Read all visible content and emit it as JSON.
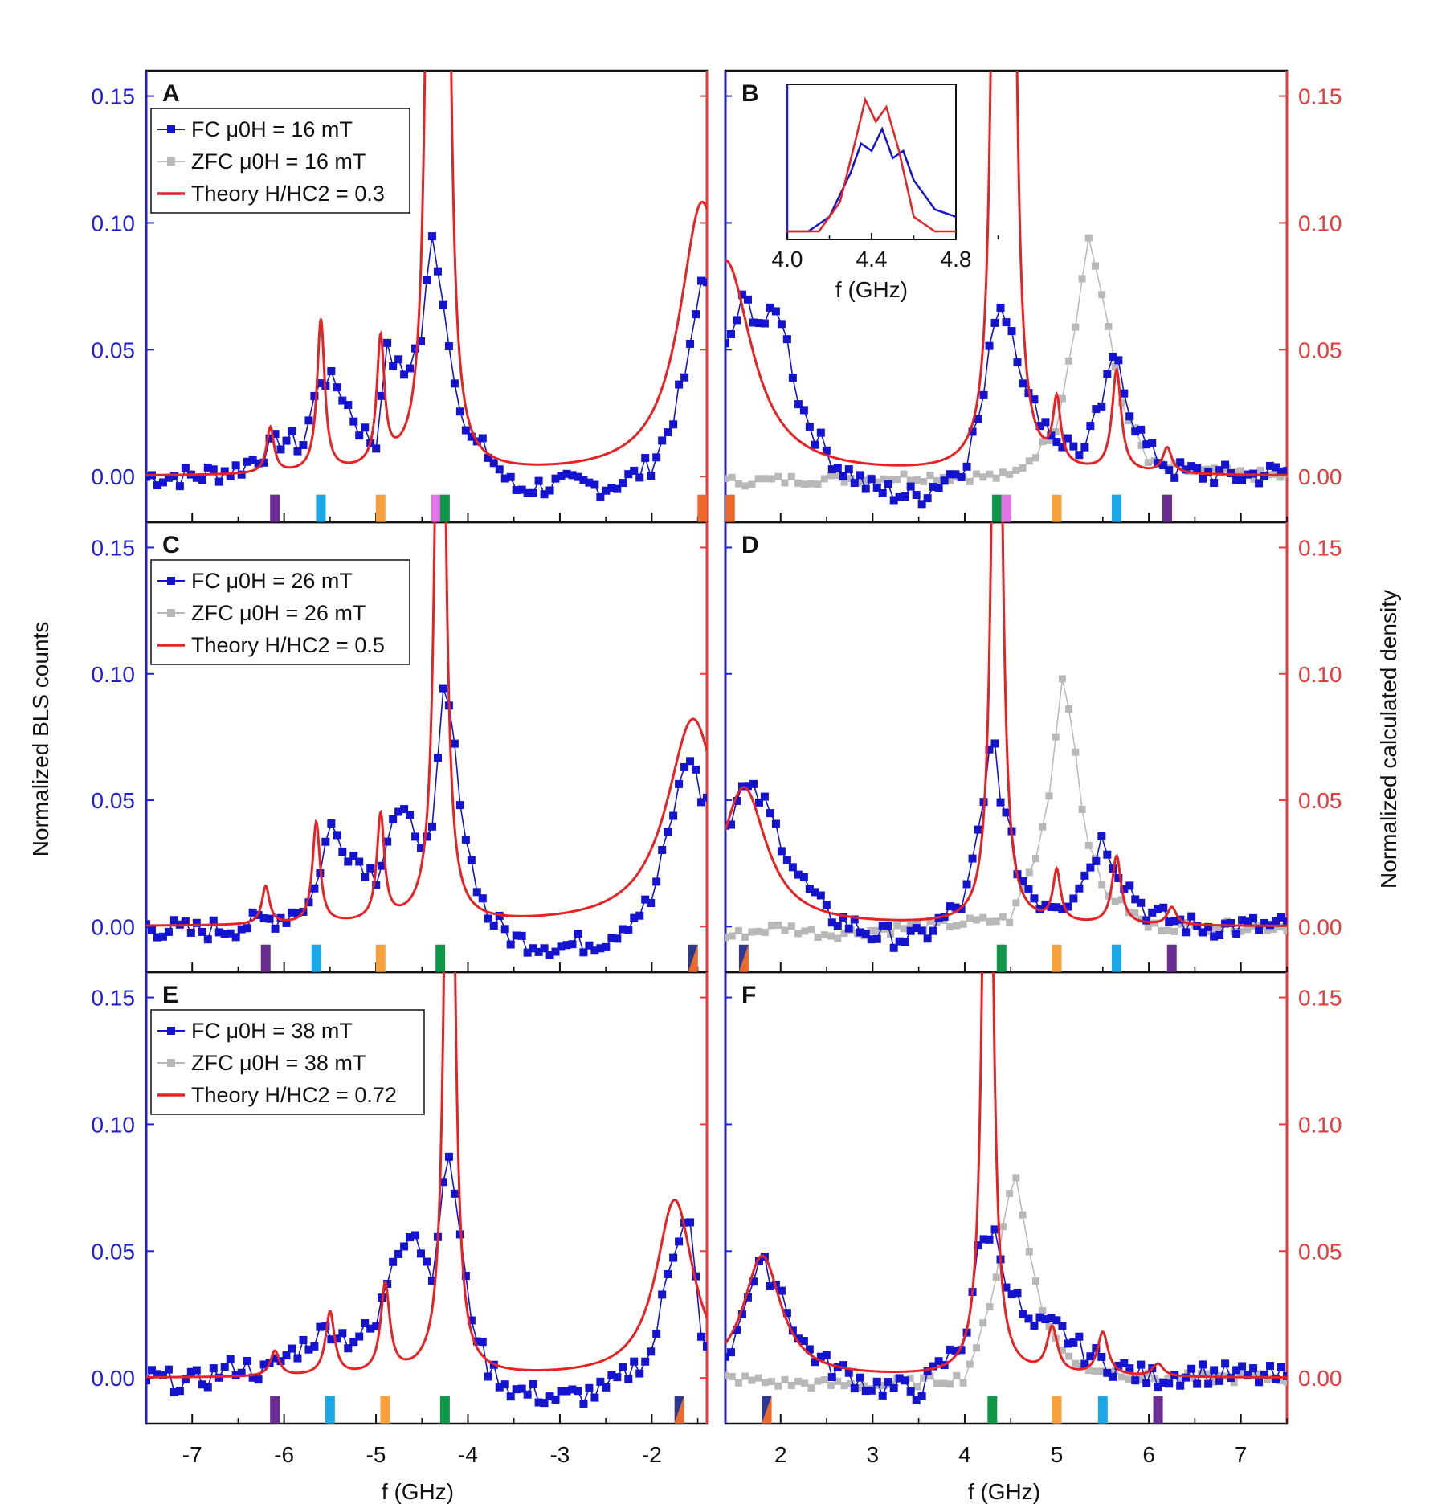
{
  "figure": {
    "y_left_title": "Normalized BLS counts",
    "y_right_title": "Normalized calculated density",
    "x_title_left": "f (GHz)",
    "x_title_right": "f (GHz)",
    "colors": {
      "fc": "#1414d0",
      "zfc": "#b8b8b8",
      "theory": "#e82222",
      "left_axis": "#1f1fd6",
      "right_axis": "#e83a3a"
    }
  },
  "chart_data": [
    {
      "panel": "A",
      "type": "line",
      "xlim": [
        -7.5,
        -1.4
      ],
      "ylim": [
        -0.018,
        0.16
      ],
      "legend": [
        "FC μ0H = 16 mT",
        "ZFC μ0H = 16 mT",
        "Theory H/HC2 = 0.3"
      ],
      "theory_peaks": [
        {
          "f": -6.15,
          "h": 0.018,
          "w": 0.05
        },
        {
          "f": -5.6,
          "h": 0.06,
          "w": 0.05
        },
        {
          "f": -4.95,
          "h": 0.05,
          "w": 0.05
        },
        {
          "f": -4.4,
          "h": 0.4,
          "w": 0.05
        },
        {
          "f": -4.25,
          "h": 0.4,
          "w": 0.05
        },
        {
          "f": -1.45,
          "h": 0.108,
          "w": 0.3
        }
      ],
      "fc_points": [
        [
          -7.5,
          0.0
        ],
        [
          -7.0,
          0.0
        ],
        [
          -6.5,
          0.003
        ],
        [
          -6.2,
          0.01
        ],
        [
          -6.0,
          0.015
        ],
        [
          -5.8,
          0.012
        ],
        [
          -5.6,
          0.04
        ],
        [
          -5.4,
          0.035
        ],
        [
          -5.2,
          0.02
        ],
        [
          -5.0,
          0.012
        ],
        [
          -4.9,
          0.05
        ],
        [
          -4.7,
          0.04
        ],
        [
          -4.5,
          0.055
        ],
        [
          -4.4,
          0.095
        ],
        [
          -4.3,
          0.08
        ],
        [
          -4.2,
          0.05
        ],
        [
          -4.0,
          0.015
        ],
        [
          -3.8,
          0.01
        ],
        [
          -3.5,
          -0.005
        ],
        [
          -3.0,
          -0.003
        ],
        [
          -2.5,
          -0.004
        ],
        [
          -2.2,
          0.0
        ],
        [
          -2.0,
          0.005
        ],
        [
          -1.8,
          0.02
        ],
        [
          -1.6,
          0.045
        ],
        [
          -1.45,
          0.08
        ]
      ],
      "markers": [
        {
          "f": -6.1,
          "colors": [
            "#6a2d91"
          ]
        },
        {
          "f": -5.6,
          "colors": [
            "#1aa8e8"
          ]
        },
        {
          "f": -4.95,
          "colors": [
            "#f7a03c"
          ]
        },
        {
          "f": -4.35,
          "colors": [
            "#e472e8"
          ]
        },
        {
          "f": -4.25,
          "colors": [
            "#10984a"
          ]
        },
        {
          "f": -1.45,
          "colors": [
            "#ed6a2c"
          ]
        }
      ]
    },
    {
      "panel": "B",
      "type": "line",
      "xlim": [
        1.4,
        7.5
      ],
      "ylim": [
        -0.018,
        0.16
      ],
      "theory_peaks": [
        {
          "f": 1.4,
          "h": 0.085,
          "w": 0.35
        },
        {
          "f": 4.35,
          "h": 0.4,
          "w": 0.05
        },
        {
          "f": 4.5,
          "h": 0.4,
          "w": 0.05
        },
        {
          "f": 5.0,
          "h": 0.025,
          "w": 0.05
        },
        {
          "f": 5.65,
          "h": 0.04,
          "w": 0.06
        },
        {
          "f": 6.2,
          "h": 0.01,
          "w": 0.06
        }
      ],
      "fc_points": [
        [
          1.4,
          0.05
        ],
        [
          1.6,
          0.07
        ],
        [
          1.8,
          0.06
        ],
        [
          2.0,
          0.065
        ],
        [
          2.2,
          0.03
        ],
        [
          2.4,
          0.015
        ],
        [
          2.6,
          0.005
        ],
        [
          3.0,
          -0.005
        ],
        [
          3.5,
          -0.008
        ],
        [
          4.0,
          0.005
        ],
        [
          4.2,
          0.03
        ],
        [
          4.35,
          0.07
        ],
        [
          4.5,
          0.06
        ],
        [
          4.7,
          0.03
        ],
        [
          5.0,
          0.015
        ],
        [
          5.3,
          0.01
        ],
        [
          5.5,
          0.03
        ],
        [
          5.65,
          0.05
        ],
        [
          5.8,
          0.025
        ],
        [
          6.0,
          0.01
        ],
        [
          6.3,
          0.002
        ],
        [
          7.0,
          0.0
        ],
        [
          7.5,
          0.002
        ]
      ],
      "zfc_points": [
        [
          1.4,
          -0.002
        ],
        [
          2.5,
          -0.001
        ],
        [
          3.5,
          0.0
        ],
        [
          4.5,
          0.0
        ],
        [
          4.8,
          0.01
        ],
        [
          5.0,
          0.02
        ],
        [
          5.2,
          0.06
        ],
        [
          5.35,
          0.095
        ],
        [
          5.5,
          0.07
        ],
        [
          5.7,
          0.03
        ],
        [
          6.0,
          0.005
        ],
        [
          6.5,
          0.002
        ],
        [
          7.5,
          0.0
        ]
      ],
      "markers": [
        {
          "f": 1.45,
          "colors": [
            "#ed6a2c"
          ]
        },
        {
          "f": 4.35,
          "colors": [
            "#10984a"
          ]
        },
        {
          "f": 4.45,
          "colors": [
            "#e472e8"
          ]
        },
        {
          "f": 5.0,
          "colors": [
            "#f7a03c"
          ]
        },
        {
          "f": 5.65,
          "colors": [
            "#1aa8e8"
          ]
        },
        {
          "f": 6.2,
          "colors": [
            "#6a2d91"
          ]
        }
      ],
      "inset": {
        "xlim": [
          4.0,
          4.8
        ],
        "ticks": [
          "4.0",
          "4.4",
          "4.8"
        ],
        "xlabel": "f (GHz)",
        "fc": [
          [
            4.0,
            0.0
          ],
          [
            4.1,
            0.0
          ],
          [
            4.2,
            0.02
          ],
          [
            4.3,
            0.08
          ],
          [
            4.35,
            0.12
          ],
          [
            4.4,
            0.11
          ],
          [
            4.45,
            0.14
          ],
          [
            4.5,
            0.1
          ],
          [
            4.55,
            0.11
          ],
          [
            4.6,
            0.07
          ],
          [
            4.7,
            0.03
          ],
          [
            4.8,
            0.02
          ]
        ],
        "theory": [
          [
            4.0,
            0.0
          ],
          [
            4.15,
            0.0
          ],
          [
            4.25,
            0.04
          ],
          [
            4.32,
            0.12
          ],
          [
            4.37,
            0.18
          ],
          [
            4.42,
            0.15
          ],
          [
            4.47,
            0.17
          ],
          [
            4.53,
            0.11
          ],
          [
            4.6,
            0.02
          ],
          [
            4.7,
            0.0
          ],
          [
            4.8,
            0.0
          ]
        ]
      }
    },
    {
      "panel": "C",
      "type": "line",
      "xlim": [
        -7.5,
        -1.4
      ],
      "ylim": [
        -0.018,
        0.16
      ],
      "legend": [
        "FC μ0H = 26 mT",
        "ZFC μ0H = 26 mT",
        "Theory H/HC2 = 0.5"
      ],
      "theory_peaks": [
        {
          "f": -6.2,
          "h": 0.015,
          "w": 0.05
        },
        {
          "f": -5.65,
          "h": 0.04,
          "w": 0.05
        },
        {
          "f": -4.95,
          "h": 0.042,
          "w": 0.05
        },
        {
          "f": -4.3,
          "h": 0.4,
          "w": 0.05
        },
        {
          "f": -1.55,
          "h": 0.082,
          "w": 0.35
        }
      ],
      "fc_points": [
        [
          -7.5,
          0.0
        ],
        [
          -7.0,
          -0.002
        ],
        [
          -6.5,
          0.0
        ],
        [
          -6.0,
          0.004
        ],
        [
          -5.7,
          0.01
        ],
        [
          -5.5,
          0.04
        ],
        [
          -5.3,
          0.03
        ],
        [
          -5.0,
          0.02
        ],
        [
          -4.8,
          0.045
        ],
        [
          -4.6,
          0.04
        ],
        [
          -4.4,
          0.03
        ],
        [
          -4.25,
          0.1
        ],
        [
          -4.15,
          0.07
        ],
        [
          -4.0,
          0.03
        ],
        [
          -3.8,
          0.005
        ],
        [
          -3.5,
          -0.005
        ],
        [
          -3.0,
          -0.008
        ],
        [
          -2.5,
          -0.005
        ],
        [
          -2.0,
          0.01
        ],
        [
          -1.8,
          0.04
        ],
        [
          -1.6,
          0.07
        ],
        [
          -1.45,
          0.05
        ]
      ],
      "markers": [
        {
          "f": -6.2,
          "colors": [
            "#6a2d91"
          ]
        },
        {
          "f": -5.65,
          "colors": [
            "#1aa8e8"
          ]
        },
        {
          "f": -4.95,
          "colors": [
            "#f7a03c"
          ]
        },
        {
          "f": -4.3,
          "colors": [
            "#10984a"
          ]
        },
        {
          "f": -1.55,
          "colors": [
            "#2b3990",
            "#ed6a2c"
          ]
        }
      ]
    },
    {
      "panel": "D",
      "type": "line",
      "xlim": [
        1.4,
        7.5
      ],
      "ylim": [
        -0.018,
        0.16
      ],
      "theory_peaks": [
        {
          "f": 1.6,
          "h": 0.055,
          "w": 0.3
        },
        {
          "f": 4.35,
          "h": 0.4,
          "w": 0.05
        },
        {
          "f": 5.0,
          "h": 0.02,
          "w": 0.05
        },
        {
          "f": 5.65,
          "h": 0.027,
          "w": 0.06
        },
        {
          "f": 6.25,
          "h": 0.007,
          "w": 0.06
        }
      ],
      "fc_points": [
        [
          1.4,
          0.04
        ],
        [
          1.6,
          0.055
        ],
        [
          1.8,
          0.05
        ],
        [
          2.0,
          0.035
        ],
        [
          2.2,
          0.02
        ],
        [
          2.5,
          0.005
        ],
        [
          3.0,
          -0.003
        ],
        [
          3.5,
          -0.005
        ],
        [
          4.0,
          0.01
        ],
        [
          4.2,
          0.045
        ],
        [
          4.3,
          0.08
        ],
        [
          4.4,
          0.05
        ],
        [
          4.6,
          0.02
        ],
        [
          4.8,
          0.01
        ],
        [
          5.1,
          0.01
        ],
        [
          5.3,
          0.02
        ],
        [
          5.5,
          0.035
        ],
        [
          5.7,
          0.02
        ],
        [
          6.0,
          0.005
        ],
        [
          6.5,
          0.0
        ],
        [
          7.5,
          0.0
        ]
      ],
      "zfc_points": [
        [
          1.4,
          -0.004
        ],
        [
          2.0,
          0.0
        ],
        [
          2.5,
          -0.003
        ],
        [
          3.5,
          0.0
        ],
        [
          4.5,
          0.003
        ],
        [
          4.8,
          0.03
        ],
        [
          4.95,
          0.06
        ],
        [
          5.05,
          0.1
        ],
        [
          5.15,
          0.085
        ],
        [
          5.3,
          0.04
        ],
        [
          5.5,
          0.015
        ],
        [
          6.0,
          0.0
        ],
        [
          7.5,
          0.0
        ]
      ],
      "markers": [
        {
          "f": 1.6,
          "colors": [
            "#2b3990",
            "#ed6a2c"
          ]
        },
        {
          "f": 4.4,
          "colors": [
            "#10984a"
          ]
        },
        {
          "f": 5.0,
          "colors": [
            "#f7a03c"
          ]
        },
        {
          "f": 5.65,
          "colors": [
            "#1aa8e8"
          ]
        },
        {
          "f": 6.25,
          "colors": [
            "#6a2d91"
          ]
        }
      ]
    },
    {
      "panel": "E",
      "type": "line",
      "xlim": [
        -7.5,
        -1.4
      ],
      "ylim": [
        -0.018,
        0.16
      ],
      "legend": [
        "FC μ0H = 38 mT",
        "ZFC μ0H = 38 mT",
        "Theory H/HC2 = 0.72"
      ],
      "theory_peaks": [
        {
          "f": -6.1,
          "h": 0.01,
          "w": 0.06
        },
        {
          "f": -5.5,
          "h": 0.025,
          "w": 0.06
        },
        {
          "f": -4.9,
          "h": 0.035,
          "w": 0.06
        },
        {
          "f": -4.2,
          "h": 0.4,
          "w": 0.05
        },
        {
          "f": -1.75,
          "h": 0.07,
          "w": 0.25
        }
      ],
      "fc_points": [
        [
          -7.5,
          0.0
        ],
        [
          -7.0,
          -0.002
        ],
        [
          -6.5,
          0.005
        ],
        [
          -6.2,
          0.002
        ],
        [
          -6.0,
          0.008
        ],
        [
          -5.7,
          0.015
        ],
        [
          -5.5,
          0.02
        ],
        [
          -5.3,
          0.015
        ],
        [
          -5.0,
          0.02
        ],
        [
          -4.8,
          0.05
        ],
        [
          -4.6,
          0.06
        ],
        [
          -4.4,
          0.04
        ],
        [
          -4.2,
          0.09
        ],
        [
          -4.1,
          0.06
        ],
        [
          -4.0,
          0.03
        ],
        [
          -3.8,
          0.005
        ],
        [
          -3.5,
          -0.005
        ],
        [
          -3.0,
          -0.008
        ],
        [
          -2.5,
          -0.005
        ],
        [
          -2.0,
          0.01
        ],
        [
          -1.8,
          0.045
        ],
        [
          -1.6,
          0.07
        ],
        [
          -1.45,
          0.01
        ]
      ],
      "markers": [
        {
          "f": -6.1,
          "colors": [
            "#6a2d91"
          ]
        },
        {
          "f": -5.5,
          "colors": [
            "#1aa8e8"
          ]
        },
        {
          "f": -4.9,
          "colors": [
            "#f7a03c"
          ]
        },
        {
          "f": -4.25,
          "colors": [
            "#10984a"
          ]
        },
        {
          "f": -1.7,
          "colors": [
            "#2b3990",
            "#ed6a2c"
          ]
        }
      ]
    },
    {
      "panel": "F",
      "type": "line",
      "xlim": [
        1.4,
        7.5
      ],
      "ylim": [
        -0.018,
        0.16
      ],
      "theory_peaks": [
        {
          "f": 1.8,
          "h": 0.048,
          "w": 0.25
        },
        {
          "f": 4.25,
          "h": 0.4,
          "w": 0.05
        },
        {
          "f": 4.95,
          "h": 0.018,
          "w": 0.07
        },
        {
          "f": 5.5,
          "h": 0.017,
          "w": 0.07
        },
        {
          "f": 6.1,
          "h": 0.005,
          "w": 0.07
        }
      ],
      "fc_points": [
        [
          1.4,
          0.005
        ],
        [
          1.6,
          0.03
        ],
        [
          1.8,
          0.045
        ],
        [
          2.0,
          0.035
        ],
        [
          2.2,
          0.015
        ],
        [
          2.5,
          0.005
        ],
        [
          3.0,
          -0.003
        ],
        [
          3.5,
          -0.005
        ],
        [
          4.0,
          0.015
        ],
        [
          4.15,
          0.05
        ],
        [
          4.3,
          0.06
        ],
        [
          4.45,
          0.04
        ],
        [
          4.7,
          0.02
        ],
        [
          5.0,
          0.02
        ],
        [
          5.3,
          0.01
        ],
        [
          5.6,
          0.005
        ],
        [
          6.0,
          0.0
        ],
        [
          6.5,
          0.002
        ],
        [
          7.5,
          0.0
        ]
      ],
      "zfc_points": [
        [
          1.4,
          0.0
        ],
        [
          2.0,
          -0.002
        ],
        [
          3.0,
          -0.003
        ],
        [
          4.0,
          0.0
        ],
        [
          4.3,
          0.03
        ],
        [
          4.45,
          0.07
        ],
        [
          4.55,
          0.08
        ],
        [
          4.7,
          0.05
        ],
        [
          4.9,
          0.02
        ],
        [
          5.2,
          0.005
        ],
        [
          6.0,
          0.0
        ],
        [
          7.5,
          0.0
        ]
      ],
      "markers": [
        {
          "f": 1.85,
          "colors": [
            "#2b3990",
            "#ed6a2c"
          ]
        },
        {
          "f": 4.3,
          "colors": [
            "#10984a"
          ]
        },
        {
          "f": 5.0,
          "colors": [
            "#f7a03c"
          ]
        },
        {
          "f": 5.5,
          "colors": [
            "#1aa8e8"
          ]
        },
        {
          "f": 6.1,
          "colors": [
            "#6a2d91"
          ]
        }
      ]
    }
  ],
  "y_ticks": [
    "0.00",
    "0.05",
    "0.10",
    "0.15"
  ],
  "x_ticks_left": [
    "-7",
    "-6",
    "-5",
    "-4",
    "-3",
    "-2"
  ],
  "x_ticks_right": [
    "2",
    "3",
    "4",
    "5",
    "6",
    "7"
  ]
}
